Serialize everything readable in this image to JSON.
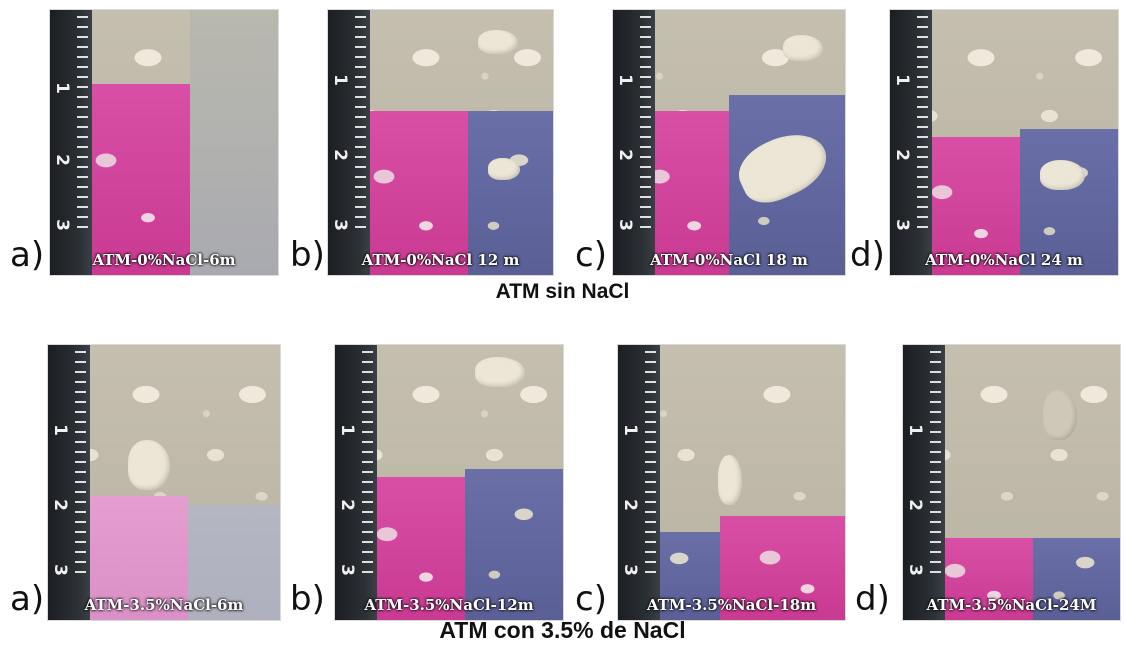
{
  "top_group": {
    "title": "ATM sin NaCl",
    "panels": [
      {
        "letter": "a)",
        "caption": "ATM-0%NaCl-6m",
        "pink_fraction": 0.72,
        "blue_fraction": 0.0
      },
      {
        "letter": "b)",
        "caption": "ATM-0%NaCl 12 m",
        "pink_fraction": 0.62,
        "blue_fraction": 0.62
      },
      {
        "letter": "c)",
        "caption": "ATM-0%NaCl 18 m",
        "pink_fraction": 0.62,
        "blue_fraction": 0.68
      },
      {
        "letter": "d)",
        "caption": "ATM-0%NaCl 24 m",
        "pink_fraction": 0.52,
        "blue_fraction": 0.55
      }
    ]
  },
  "bottom_group": {
    "title": "ATM con 3.5% de NaCl",
    "panels": [
      {
        "letter": "a)",
        "caption": "ATM-3.5%NaCl-6m",
        "pink_fraction": 0.45,
        "blue_fraction": 0.42
      },
      {
        "letter": "b)",
        "caption": "ATM-3.5%NaCl-12m",
        "pink_fraction": 0.52,
        "blue_fraction": 0.55
      },
      {
        "letter": "c)",
        "caption": "ATM-3.5%NaCl-18m",
        "pink_fraction": 0.38,
        "blue_fraction": 0.32
      },
      {
        "letter": "d)",
        "caption": "ATM-3.5%NaCl-24M",
        "pink_fraction": 0.3,
        "blue_fraction": 0.3
      }
    ]
  },
  "colors": {
    "phenolphthalein_pink": "#d94fa6",
    "carbonated_blue": "#6a6fa8",
    "concrete_gray": "#c4bfae",
    "ruler_dark": "#1b1e22",
    "background": "#ffffff"
  },
  "scale_marks": [
    "1",
    "2",
    "3"
  ]
}
